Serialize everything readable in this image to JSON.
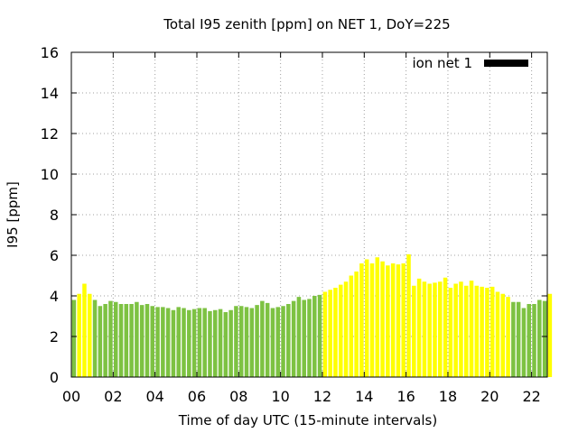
{
  "chart_data": {
    "type": "bar",
    "title": "Total I95 zenith [ppm] on NET 1, DoY=225",
    "xlabel": "Time of day UTC (15-minute intervals)",
    "ylabel": "I95 [ppm]",
    "ylim": [
      0,
      16
    ],
    "xlim_hours": [
      0,
      22.75
    ],
    "yticks": [
      "0",
      "2",
      "4",
      "6",
      "8",
      "10",
      "12",
      "14",
      "16"
    ],
    "xticks": [
      "00",
      "02",
      "04",
      "06",
      "08",
      "10",
      "12",
      "14",
      "16",
      "18",
      "20",
      "22"
    ],
    "grid": true,
    "legend": {
      "label": "ion net 1",
      "color": "#000000",
      "position": "top-right"
    },
    "colors": {
      "green": "#7dc242",
      "yellow": "#ffff00"
    },
    "interval_hours": 0.25,
    "values": [
      3.8,
      4.1,
      4.6,
      4.1,
      3.8,
      3.5,
      3.6,
      3.75,
      3.7,
      3.6,
      3.6,
      3.6,
      3.7,
      3.55,
      3.6,
      3.5,
      3.45,
      3.45,
      3.4,
      3.3,
      3.45,
      3.4,
      3.3,
      3.35,
      3.4,
      3.4,
      3.25,
      3.3,
      3.35,
      3.2,
      3.3,
      3.5,
      3.5,
      3.45,
      3.4,
      3.55,
      3.75,
      3.65,
      3.4,
      3.45,
      3.5,
      3.6,
      3.75,
      3.95,
      3.8,
      3.85,
      4.0,
      4.05,
      4.2,
      4.3,
      4.4,
      4.55,
      4.7,
      5.0,
      5.2,
      5.6,
      5.8,
      5.6,
      5.9,
      5.7,
      5.5,
      5.6,
      5.55,
      5.6,
      6.05,
      4.5,
      4.85,
      4.7,
      4.6,
      4.65,
      4.7,
      4.9,
      4.4,
      4.6,
      4.7,
      4.5,
      4.75,
      4.5,
      4.45,
      4.4,
      4.45,
      4.2,
      4.1,
      3.95,
      3.7,
      3.7,
      3.4,
      3.6,
      3.6,
      3.8,
      3.75,
      4.1
    ],
    "bar_colors": [
      "green",
      "yellow",
      "yellow",
      "yellow",
      "green",
      "green",
      "green",
      "green",
      "green",
      "green",
      "green",
      "green",
      "green",
      "green",
      "green",
      "green",
      "green",
      "green",
      "green",
      "green",
      "green",
      "green",
      "green",
      "green",
      "green",
      "green",
      "green",
      "green",
      "green",
      "green",
      "green",
      "green",
      "green",
      "green",
      "green",
      "green",
      "green",
      "green",
      "green",
      "green",
      "green",
      "green",
      "green",
      "green",
      "green",
      "green",
      "green",
      "green",
      "yellow",
      "yellow",
      "yellow",
      "yellow",
      "yellow",
      "yellow",
      "yellow",
      "yellow",
      "yellow",
      "yellow",
      "yellow",
      "yellow",
      "yellow",
      "yellow",
      "yellow",
      "yellow",
      "yellow",
      "yellow",
      "yellow",
      "yellow",
      "yellow",
      "yellow",
      "yellow",
      "yellow",
      "yellow",
      "yellow",
      "yellow",
      "yellow",
      "yellow",
      "yellow",
      "yellow",
      "yellow",
      "yellow",
      "yellow",
      "yellow",
      "yellow",
      "green",
      "green",
      "green",
      "green",
      "green",
      "green",
      "green",
      "yellow"
    ]
  }
}
